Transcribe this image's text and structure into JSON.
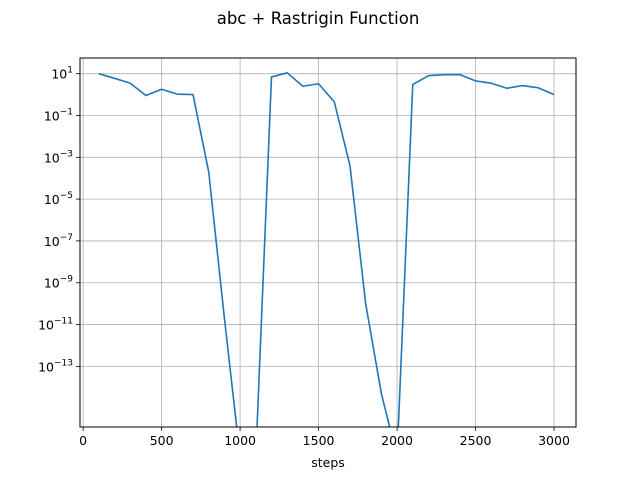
{
  "chart_data": {
    "type": "line",
    "title": "abc + Rastrigin Function",
    "xlabel": "steps",
    "ylabel": "",
    "yscale": "log",
    "grid": true,
    "xlim": [
      -20,
      3140
    ],
    "ylim_log10": [
      -15.9,
      1.75
    ],
    "color": "#1f77b4",
    "xticks": [
      {
        "value": 0,
        "label": "0"
      },
      {
        "value": 500,
        "label": "500"
      },
      {
        "value": 1000,
        "label": "1000"
      },
      {
        "value": 1500,
        "label": "1500"
      },
      {
        "value": 2000,
        "label": "2000"
      },
      {
        "value": 2500,
        "label": "2500"
      },
      {
        "value": 3000,
        "label": "3000"
      }
    ],
    "yticks": [
      {
        "exp": 1,
        "label": "10",
        "sup": "1"
      },
      {
        "exp": -1,
        "label": "10",
        "sup": "−1"
      },
      {
        "exp": -3,
        "label": "10",
        "sup": "−3"
      },
      {
        "exp": -5,
        "label": "10",
        "sup": "−5"
      },
      {
        "exp": -7,
        "label": "10",
        "sup": "−7"
      },
      {
        "exp": -9,
        "label": "10",
        "sup": "−9"
      },
      {
        "exp": -11,
        "label": "10",
        "sup": "−11"
      },
      {
        "exp": -13,
        "label": "10",
        "sup": "−13"
      }
    ],
    "series": [
      {
        "x": [
          100,
          200,
          300,
          400,
          500,
          600,
          700,
          800,
          900,
          1000,
          1100,
          1200,
          1300,
          1400,
          1500,
          1600,
          1700,
          1800,
          1900,
          2000,
          2100,
          2200,
          2300,
          2400,
          2500,
          2600,
          2700,
          2800,
          2900,
          3000
        ],
        "y": [
          10,
          6,
          3.5,
          0.9,
          1.8,
          1.05,
          1.0,
          0.0002,
          2e-11,
          0,
          0,
          7,
          11,
          2.5,
          3.3,
          0.45,
          0.0004,
          1e-10,
          5e-15,
          0,
          3,
          8,
          9,
          9,
          4.5,
          3.5,
          2.0,
          2.7,
          2.1,
          1.0
        ]
      }
    ]
  }
}
